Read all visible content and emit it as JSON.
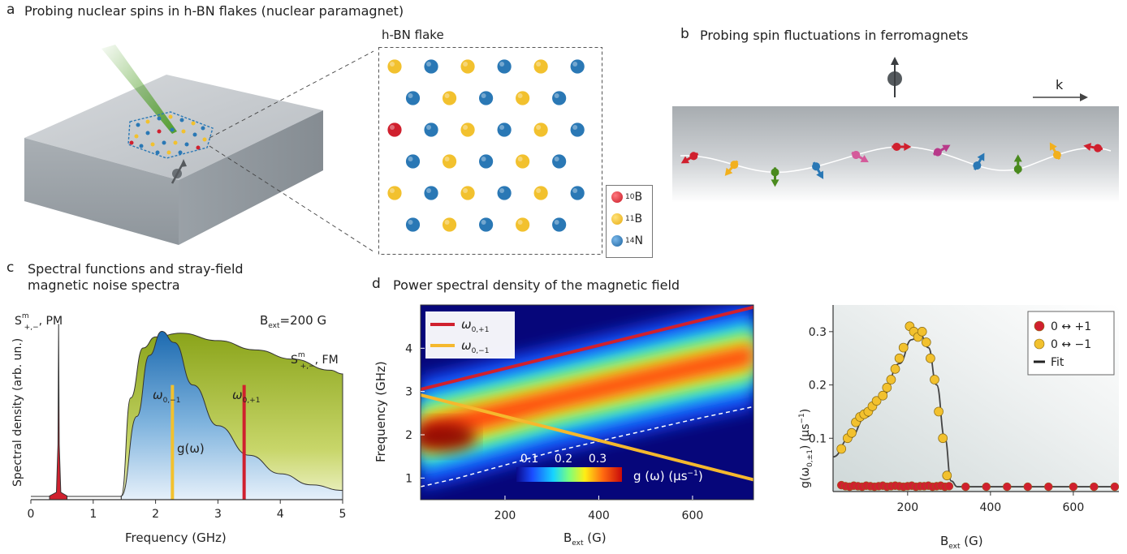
{
  "panel_a": {
    "letter": "a",
    "title": "Probing nuclear spins in h-BN flakes  (nuclear paramagnet)",
    "inset_title": "h-BN flake",
    "legend": [
      {
        "sup": "10",
        "sym": "B",
        "color": "#d0202e"
      },
      {
        "sup": "11",
        "sym": "B",
        "color": "#f2c12e"
      },
      {
        "sup": "14",
        "sym": "N",
        "color": "#2a78b5"
      }
    ]
  },
  "panel_b": {
    "letter": "b",
    "title": "Probing spin fluctuations in ferromagnets",
    "wavevector_label": "k"
  },
  "panel_c": {
    "letter": "c",
    "title_line1": "Spectral functions and stray-field",
    "title_line2": "magnetic noise spectra",
    "pm_label_main": "S",
    "pm_label_sup": "m",
    "pm_label_sub": "+,−",
    "pm_label_suffix": ", PM",
    "fm_label_main": "S",
    "fm_label_sup": "m",
    "fm_label_sub": "+,−",
    "fm_label_suffix": ", FM",
    "bext_label": "B",
    "bext_sub": "ext",
    "bext_value": "=200 G",
    "g_label": "g(ω)",
    "omega_minus": "ω",
    "omega_minus_sub": "0,−1",
    "omega_plus": "ω",
    "omega_plus_sub": "0,+1",
    "ylabel": "Spectral density (arb. un.)",
    "xlabel": "Frequency  (GHz)",
    "xticks": [
      "0",
      "1",
      "2",
      "3",
      "4",
      "5"
    ]
  },
  "panel_d": {
    "letter": "d",
    "title": "Power spectral density of the magnetic field",
    "heatmap": {
      "ylabel": "Frequency  (GHz)",
      "xlabel_main": "B",
      "xlabel_sub": "ext",
      "xlabel_unit": " (G)",
      "xticks": [
        "200",
        "400",
        "600"
      ],
      "yticks": [
        "1",
        "2",
        "3",
        "4"
      ],
      "legend": [
        {
          "main": "ω",
          "sub": "0,+1",
          "color": "#d0202e"
        },
        {
          "main": "ω",
          "sub": "0,−1",
          "color": "#f5b82e"
        }
      ],
      "colorbar_ticks": [
        "0.1",
        "0.2",
        "0.3"
      ],
      "colorbar_label": "g (ω)   (μs",
      "colorbar_label_sup": "−1",
      "colorbar_label_end": ")"
    },
    "scatter": {
      "ylabel_main": "g(ω",
      "ylabel_sub": "0,±1",
      "ylabel_end": ")  (μs",
      "ylabel_sup": "−1",
      "ylabel_close": ")",
      "xlabel_main": "B",
      "xlabel_sub": "ext",
      "xlabel_unit": " (G)",
      "xticks": [
        "200",
        "400",
        "600"
      ],
      "yticks": [
        "0.1",
        "0.2",
        "0.3"
      ],
      "legend": [
        {
          "label": "0 ↔ +1",
          "color": "#d0202e"
        },
        {
          "label": "0 ↔ −1",
          "color": "#f2c12e"
        },
        {
          "label": "Fit",
          "color": "#222222"
        }
      ]
    }
  },
  "chart_data": [
    {
      "type": "area",
      "xlim": [
        0,
        5
      ],
      "xticks": [
        0,
        1,
        2,
        3,
        4,
        5
      ],
      "series": [
        {
          "name": "PM",
          "x": [
            0.3,
            0.38,
            0.42,
            0.44,
            0.46,
            0.5,
            0.58
          ],
          "y": [
            0.02,
            0.06,
            0.35,
            0.95,
            0.35,
            0.06,
            0.02
          ]
        },
        {
          "name": "FM",
          "x": [
            1.45,
            1.6,
            1.8,
            2.0,
            2.4,
            3.0,
            3.6,
            4.2,
            4.8,
            5.0
          ],
          "y": [
            0.02,
            0.55,
            0.82,
            0.88,
            0.9,
            0.86,
            0.81,
            0.76,
            0.7,
            0.68
          ]
        },
        {
          "name": "g(ω)",
          "x": [
            1.45,
            1.7,
            1.9,
            2.1,
            2.3,
            2.6,
            3.0,
            3.5,
            4.0,
            4.5,
            5.0
          ],
          "y": [
            0.02,
            0.45,
            0.78,
            0.91,
            0.85,
            0.62,
            0.4,
            0.24,
            0.14,
            0.08,
            0.05
          ]
        }
      ],
      "vlines": [
        {
          "x": 2.27,
          "label": "ω0,−1",
          "color": "#f2c12e"
        },
        {
          "x": 3.42,
          "label": "ω0,+1",
          "color": "#d0202e"
        }
      ]
    },
    {
      "type": "heatmap",
      "xlim": [
        20,
        730
      ],
      "ylim": [
        0.5,
        5.0
      ],
      "xticks": [
        200,
        400,
        600
      ],
      "yticks": [
        1,
        2,
        3,
        4
      ],
      "lines": [
        {
          "name": "ω0,+1",
          "x": [
            20,
            730
          ],
          "y": [
            3.05,
            4.95
          ]
        },
        {
          "name": "ω0,−1",
          "x": [
            20,
            730
          ],
          "y": [
            2.92,
            0.96
          ]
        }
      ],
      "colorbar_ticks": [
        0.1,
        0.2,
        0.3
      ]
    },
    {
      "type": "scatter",
      "xlim": [
        20,
        710
      ],
      "ylim": [
        0,
        0.35
      ],
      "xticks": [
        200,
        400,
        600
      ],
      "yticks": [
        0.1,
        0.2,
        0.3
      ],
      "series": [
        {
          "name": "0 ↔ +1",
          "x": [
            40,
            50,
            60,
            70,
            80,
            90,
            100,
            110,
            120,
            130,
            140,
            150,
            160,
            170,
            180,
            190,
            200,
            210,
            220,
            230,
            240,
            250,
            260,
            270,
            280,
            290,
            300,
            340,
            390,
            440,
            490,
            540,
            600,
            650,
            700
          ],
          "y": [
            0.012,
            0.01,
            0.009,
            0.011,
            0.01,
            0.009,
            0.011,
            0.01,
            0.009,
            0.01,
            0.011,
            0.009,
            0.01,
            0.011,
            0.01,
            0.009,
            0.01,
            0.011,
            0.009,
            0.01,
            0.01,
            0.011,
            0.009,
            0.01,
            0.011,
            0.009,
            0.01,
            0.009,
            0.009,
            0.009,
            0.009,
            0.009,
            0.009,
            0.009,
            0.009
          ]
        },
        {
          "name": "0 ↔ −1",
          "x": [
            40,
            55,
            65,
            75,
            85,
            95,
            105,
            115,
            125,
            140,
            150,
            160,
            170,
            180,
            190,
            205,
            215,
            225,
            235,
            245,
            255,
            265,
            275,
            285,
            295
          ],
          "y": [
            0.08,
            0.1,
            0.11,
            0.13,
            0.14,
            0.145,
            0.15,
            0.16,
            0.17,
            0.18,
            0.195,
            0.21,
            0.23,
            0.25,
            0.27,
            0.31,
            0.3,
            0.29,
            0.3,
            0.28,
            0.25,
            0.21,
            0.15,
            0.1,
            0.03
          ]
        },
        {
          "name": "Fit",
          "x": [
            20,
            60,
            100,
            140,
            180,
            210,
            230,
            250,
            270,
            290,
            305,
            320,
            700
          ],
          "y": [
            0.065,
            0.1,
            0.14,
            0.18,
            0.24,
            0.285,
            0.295,
            0.27,
            0.2,
            0.1,
            0.02,
            0.009,
            0.009
          ]
        }
      ]
    }
  ]
}
